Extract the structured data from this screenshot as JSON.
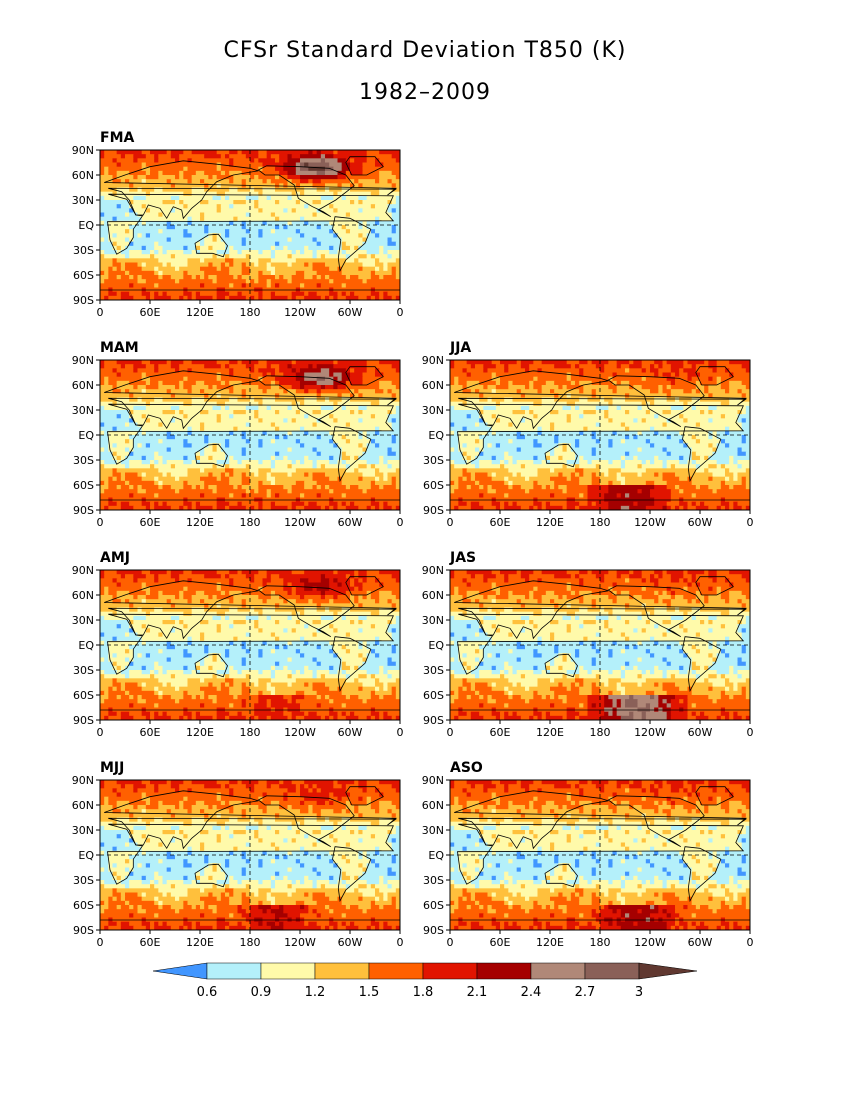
{
  "title": "CFSr Standard Deviation T850 (K)",
  "subtitle": "1982–2009",
  "colors": {
    "bin_0": "#4196ff",
    "bin_1": "#b4f0fa",
    "bin_2": "#fffaaa",
    "bin_3": "#ffc03c",
    "bin_4": "#ff6000",
    "bin_5": "#e11400",
    "bin_6": "#a50000",
    "bin_7": "#b08878",
    "bin_8": "#8a6058",
    "bin_9": "#603830"
  },
  "chart_data": {
    "type": "heatmap",
    "variable": "Standard Deviation T850",
    "units": "K",
    "x_tick_labels": [
      "0",
      "60E",
      "120E",
      "180",
      "120W",
      "60W",
      "0"
    ],
    "y_tick_labels": [
      "90N",
      "60N",
      "30N",
      "EQ",
      "30S",
      "60S",
      "90S"
    ],
    "xlim": [
      0,
      360
    ],
    "ylim": [
      -90,
      90
    ],
    "colorbar": {
      "levels": [
        0.6,
        0.9,
        1.2,
        1.5,
        1.8,
        2.1,
        2.4,
        2.7,
        3
      ],
      "labels": [
        "0.6",
        "0.9",
        "1.2",
        "1.5",
        "1.8",
        "2.1",
        "2.4",
        "2.7",
        "3"
      ],
      "extend": "both"
    },
    "panels": [
      {
        "label": "FMA",
        "nh_high_max": 3.0,
        "nh_high_center_lon": 260,
        "sh_high_level": 1.3,
        "sh_high_center_lon": 200
      },
      {
        "label": "MAM",
        "nh_high_max": 2.6,
        "nh_high_center_lon": 265,
        "sh_high_level": 1.6,
        "sh_high_center_lon": 210
      },
      {
        "label": "JJA",
        "nh_high_max": 1.7,
        "nh_high_center_lon": 270,
        "sh_high_level": 2.3,
        "sh_high_center_lon": 215
      },
      {
        "label": "AMJ",
        "nh_high_max": 2.1,
        "nh_high_center_lon": 265,
        "sh_high_level": 1.9,
        "sh_high_center_lon": 210
      },
      {
        "label": "JAS",
        "nh_high_max": 1.6,
        "nh_high_center_lon": 270,
        "sh_high_level": 2.7,
        "sh_high_center_lon": 225
      },
      {
        "label": "MJJ",
        "nh_high_max": 1.8,
        "nh_high_center_lon": 265,
        "sh_high_level": 2.1,
        "sh_high_center_lon": 212
      },
      {
        "label": "ASO",
        "nh_high_max": 1.6,
        "nh_high_center_lon": 270,
        "sh_high_level": 2.3,
        "sh_high_center_lon": 225
      }
    ]
  }
}
